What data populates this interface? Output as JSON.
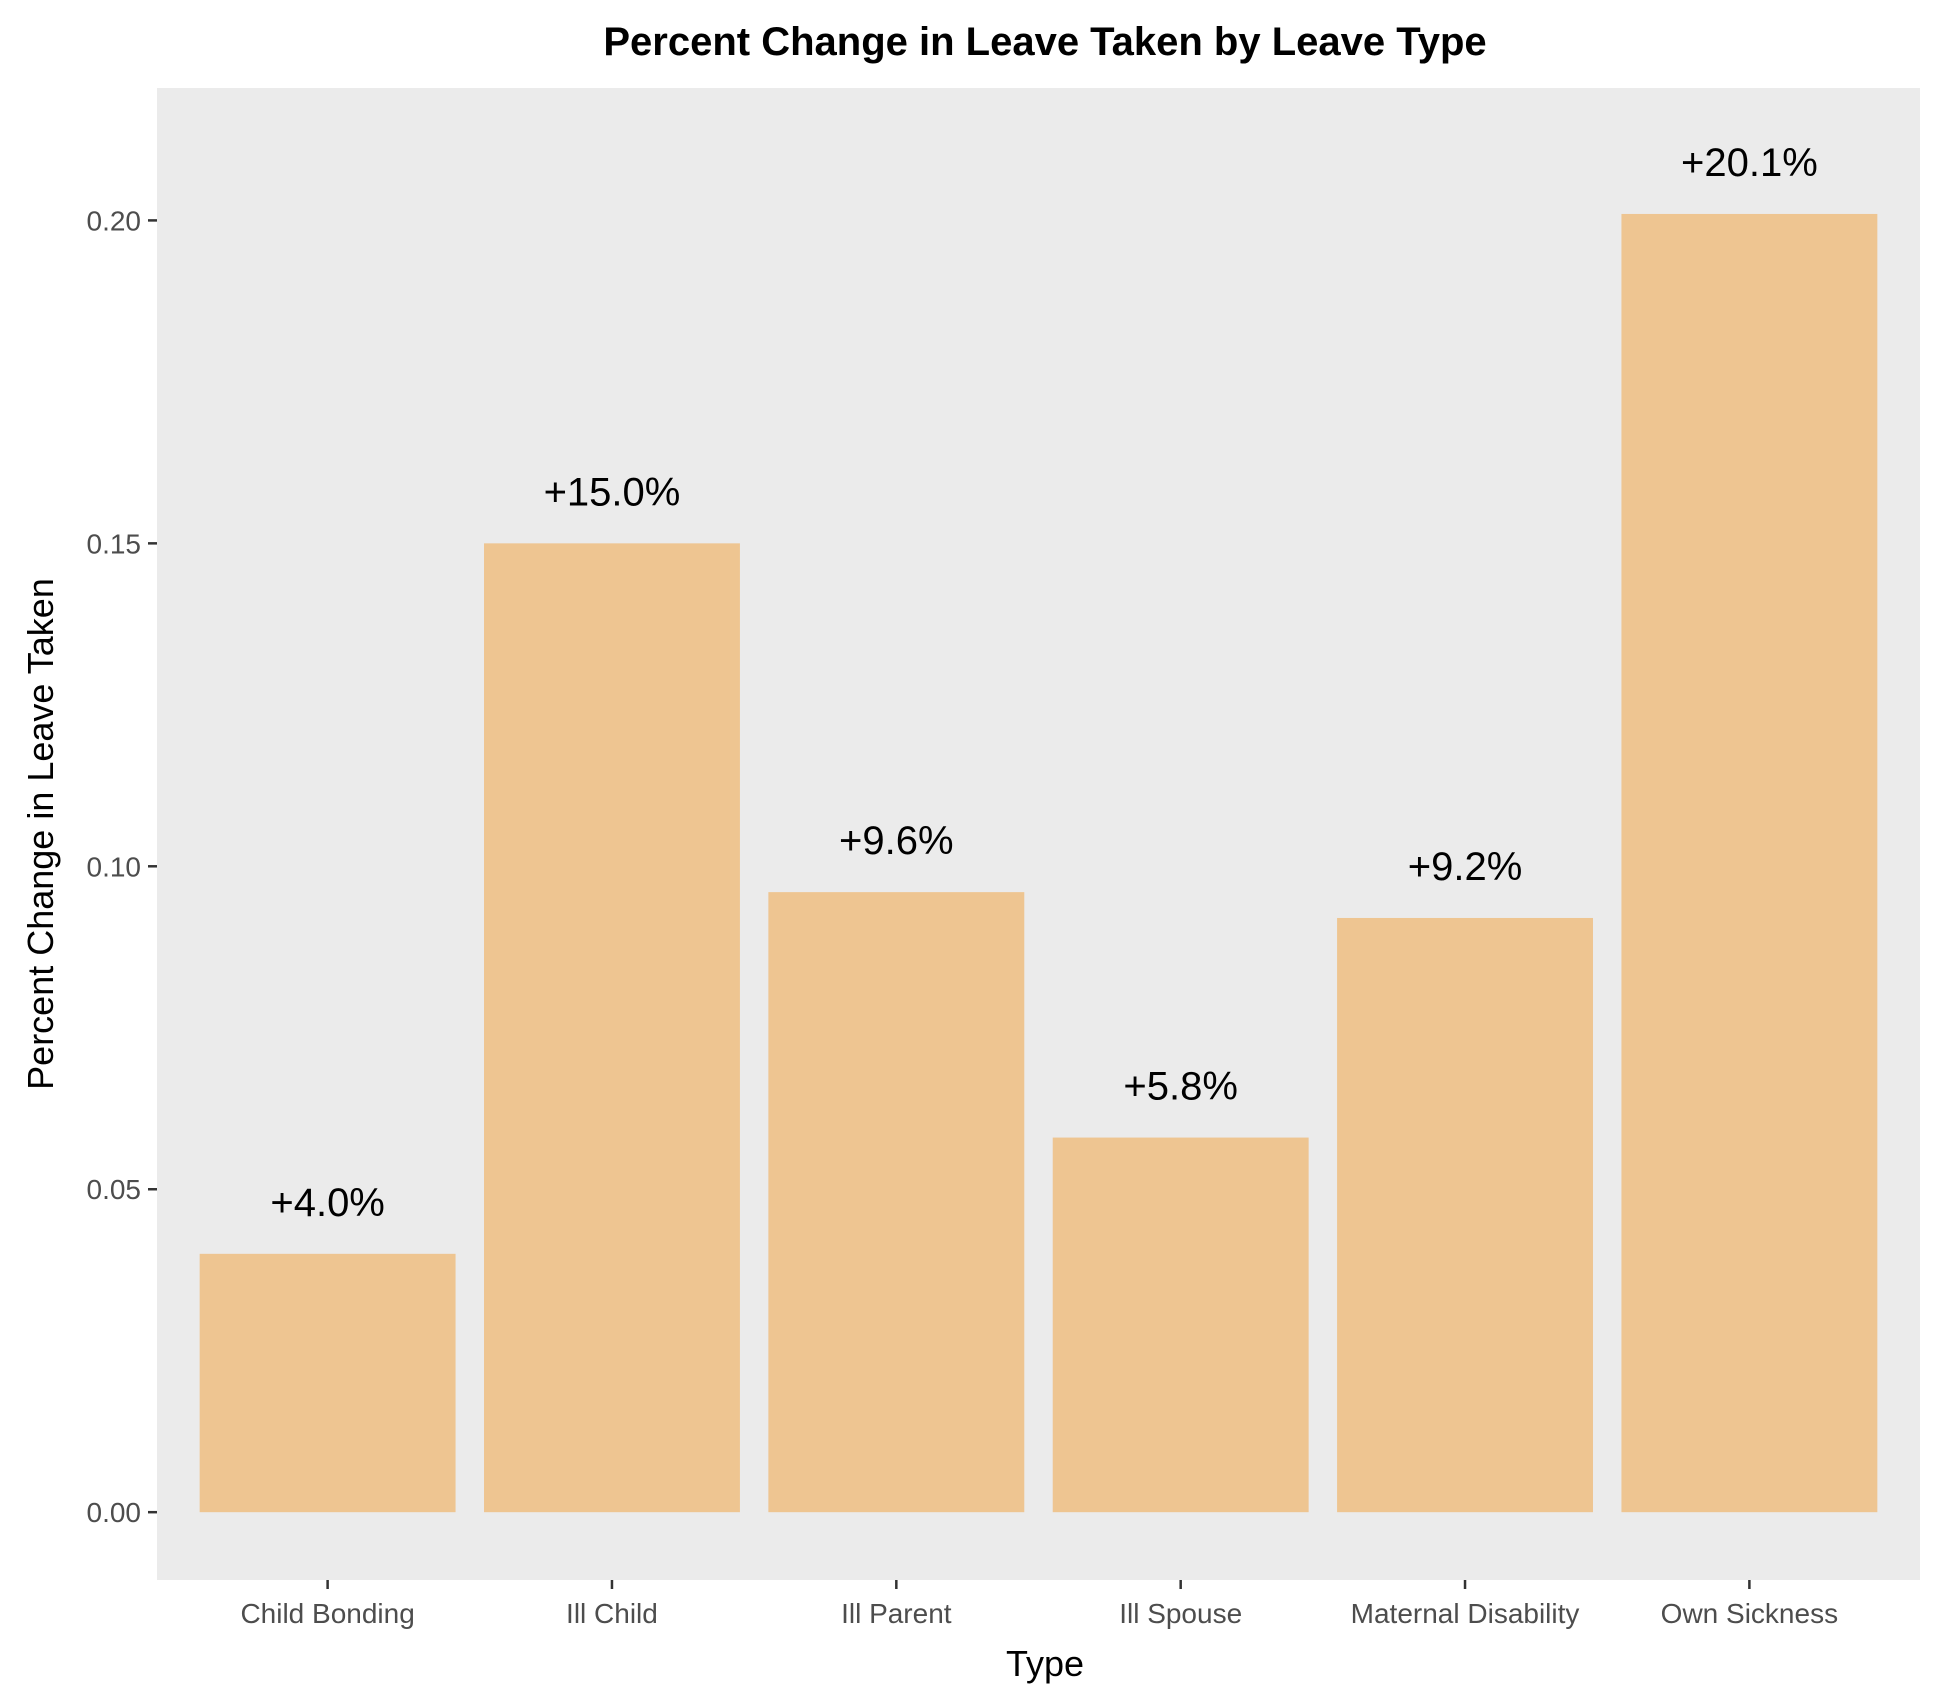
{
  "chart_data": {
    "type": "bar",
    "title": "Percent Change in Leave Taken by Leave Type",
    "xlabel": "Type",
    "ylabel": "Percent Change in Leave Taken",
    "categories": [
      "Child Bonding",
      "Ill Child",
      "Ill Parent",
      "Ill Spouse",
      "Maternal Disability",
      "Own Sickness"
    ],
    "values": [
      0.04,
      0.15,
      0.096,
      0.058,
      0.092,
      0.201
    ],
    "data_labels": [
      "+4.0%",
      "+15.0%",
      "+9.6%",
      "+5.8%",
      "+9.2%",
      "+20.1%"
    ],
    "ylim": [
      -0.0105,
      0.2205
    ],
    "yticks": [
      0.0,
      0.05,
      0.1,
      0.15,
      0.2
    ],
    "ytick_labels": [
      "0.00",
      "0.05",
      "0.10",
      "0.15",
      "0.20"
    ],
    "grid": false,
    "legend": "none",
    "colors": {
      "bar": "#EEC591",
      "panel": "#EBEBEB",
      "background": "#FFFFFF",
      "tick_text": "#4D4D4D",
      "axis_tick": "#333333",
      "text": "#000000"
    }
  }
}
